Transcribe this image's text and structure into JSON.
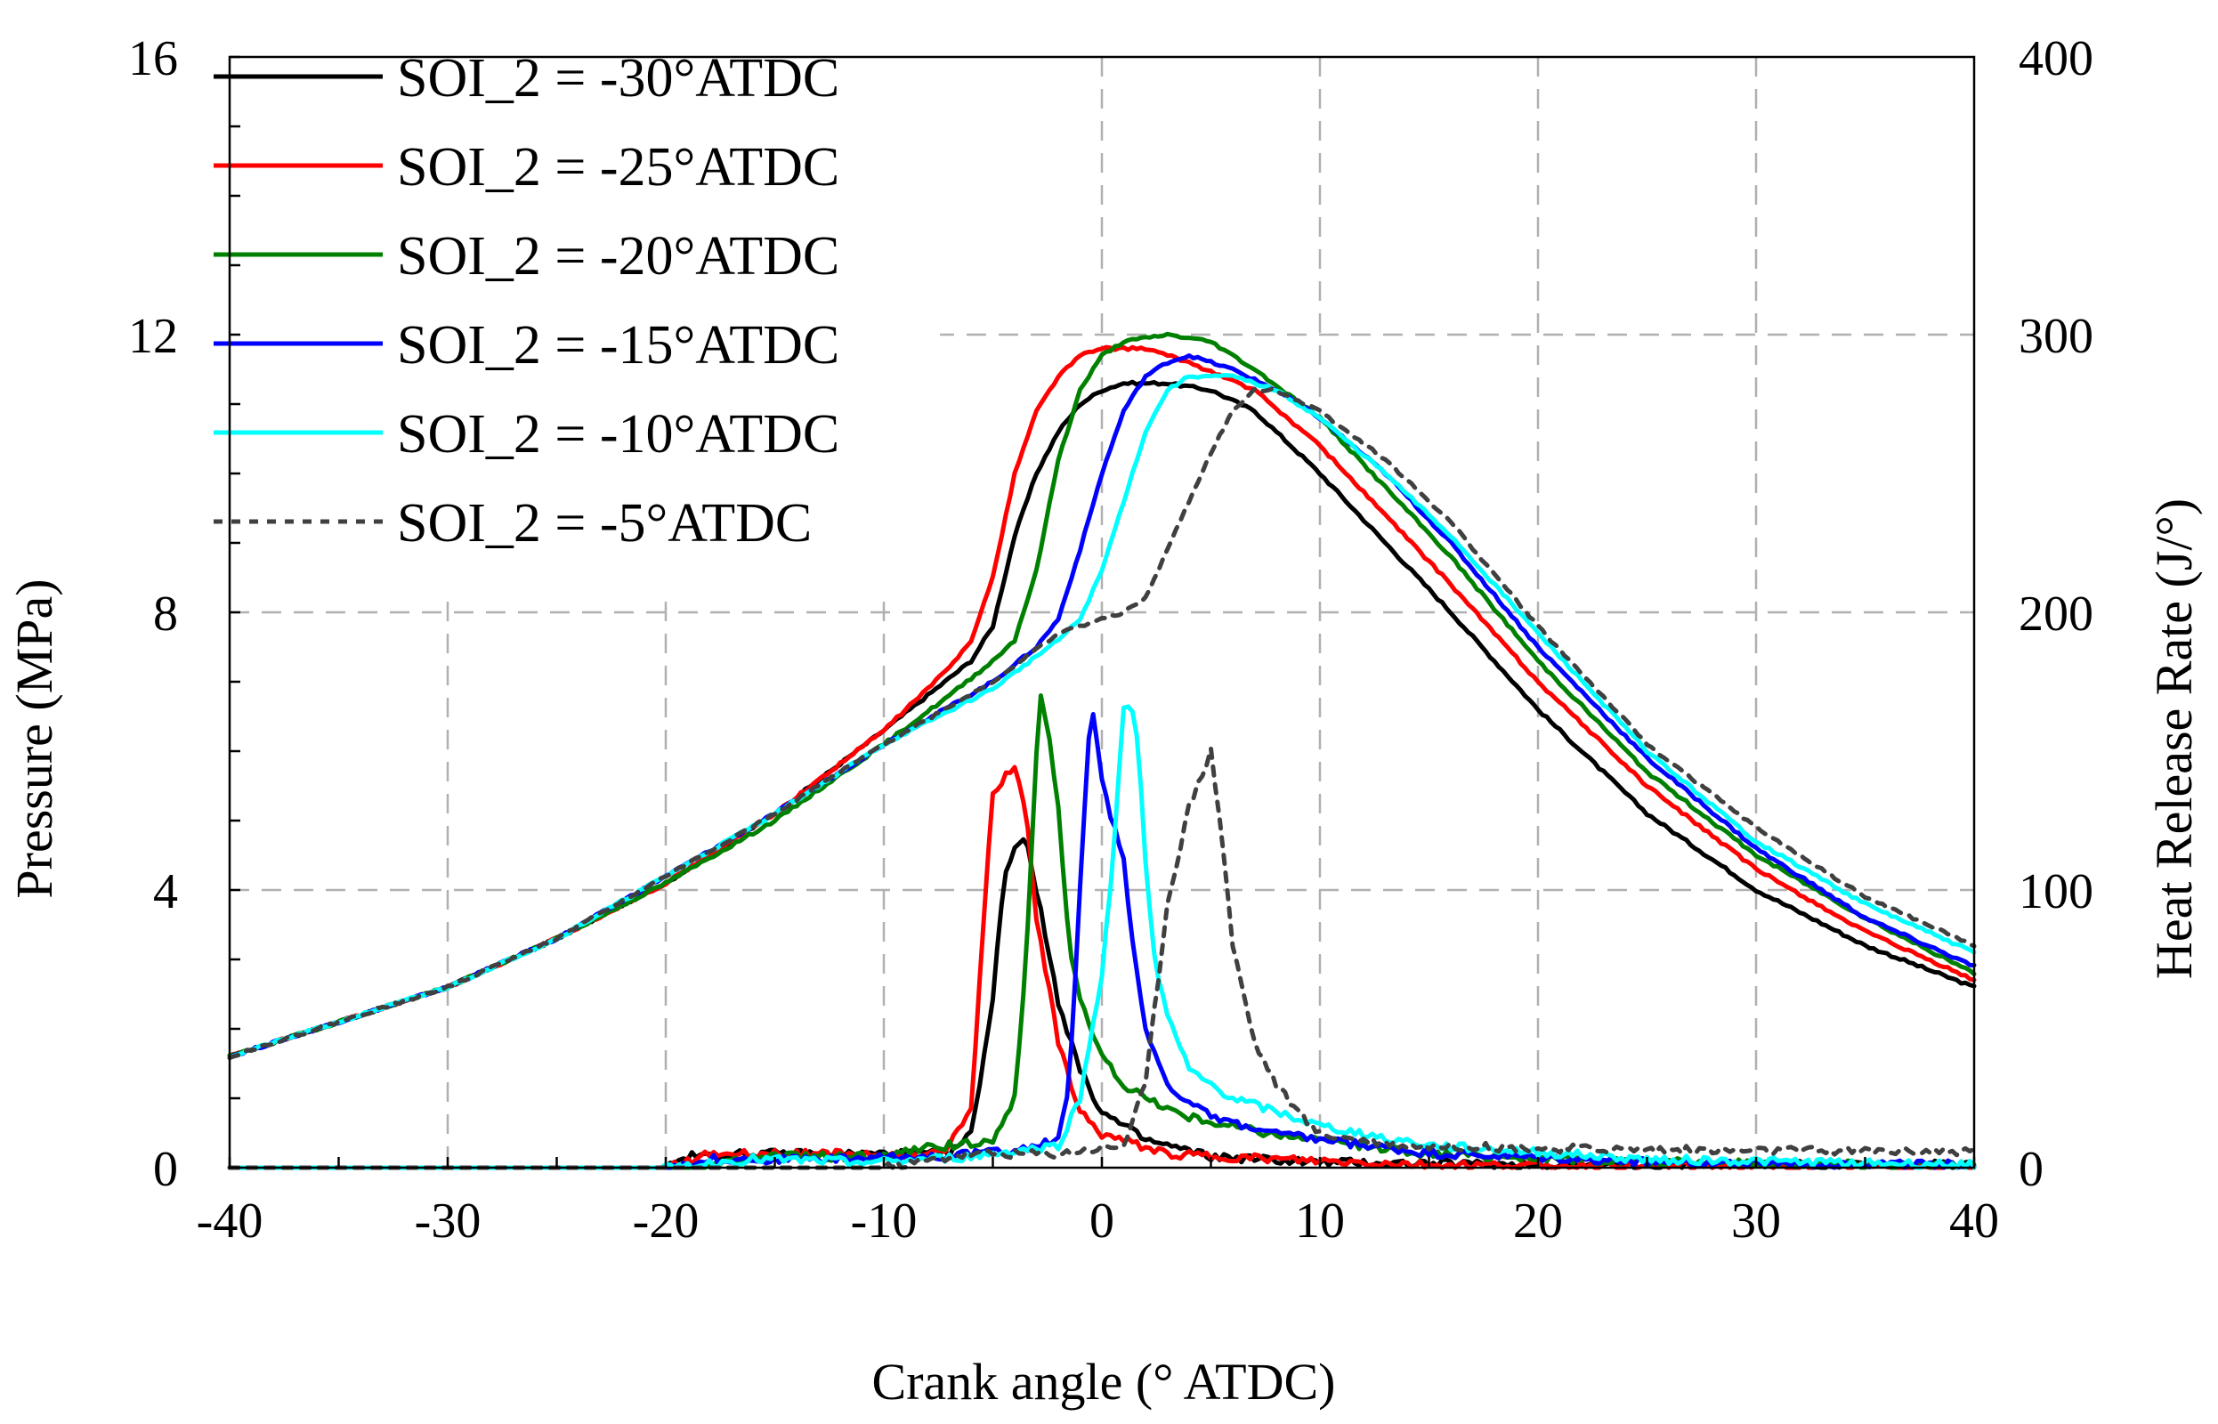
{
  "chart_data": {
    "type": "line",
    "xlabel": "Crank angle  (° ATDC)",
    "ylabel_left": "Pressure (MPa)",
    "ylabel_right": "Heat Release Rate (J/°)",
    "xlim": [
      -40,
      40
    ],
    "ylim_left": [
      0,
      16
    ],
    "ylim_right": [
      0,
      400
    ],
    "x_ticks": [
      "-40",
      "-30",
      "-20",
      "-10",
      "0",
      "10",
      "20",
      "30",
      "40"
    ],
    "y_left_ticks": [
      "0",
      "4",
      "8",
      "12",
      "16"
    ],
    "y_right_ticks": [
      "0",
      "100",
      "200",
      "300",
      "400"
    ],
    "grid": true,
    "legend_position": "top-left",
    "series": [
      {
        "name": "SOI_2 = -30°ATDC",
        "color": "#000000",
        "dash": "solid",
        "pressure": [
          [
            -40,
            1.6
          ],
          [
            -30,
            2.6
          ],
          [
            -25,
            3.3
          ],
          [
            -20,
            4.1
          ],
          [
            -15,
            5.1
          ],
          [
            -10,
            6.3
          ],
          [
            -6,
            7.3
          ],
          [
            -5,
            7.8
          ],
          [
            -4,
            9.1
          ],
          [
            -3,
            10.0
          ],
          [
            -2,
            10.6
          ],
          [
            -1,
            11.0
          ],
          [
            0,
            11.2
          ],
          [
            1,
            11.3
          ],
          [
            3,
            11.3
          ],
          [
            5,
            11.2
          ],
          [
            7,
            10.9
          ],
          [
            10,
            10.0
          ],
          [
            13,
            9.0
          ],
          [
            16,
            8.0
          ],
          [
            20,
            6.6
          ],
          [
            25,
            5.1
          ],
          [
            30,
            4.0
          ],
          [
            35,
            3.2
          ],
          [
            40,
            2.6
          ]
        ],
        "hrr": [
          [
            -40,
            0
          ],
          [
            -20,
            0
          ],
          [
            -19,
            4
          ],
          [
            -16,
            5
          ],
          [
            -10,
            5
          ],
          [
            -7,
            5
          ],
          [
            -6,
            12
          ],
          [
            -5,
            60
          ],
          [
            -4.5,
            105
          ],
          [
            -4,
            115
          ],
          [
            -3.5,
            120
          ],
          [
            -3,
            100
          ],
          [
            -2,
            60
          ],
          [
            -1,
            35
          ],
          [
            0,
            20
          ],
          [
            2,
            10
          ],
          [
            5,
            4
          ],
          [
            10,
            2
          ],
          [
            20,
            1
          ],
          [
            40,
            1
          ]
        ]
      },
      {
        "name": "SOI_2 = -25°ATDC",
        "color": "#ff0000",
        "dash": "solid",
        "pressure": [
          [
            -40,
            1.6
          ],
          [
            -30,
            2.6
          ],
          [
            -25,
            3.3
          ],
          [
            -20,
            4.1
          ],
          [
            -15,
            5.1
          ],
          [
            -10,
            6.3
          ],
          [
            -7,
            7.2
          ],
          [
            -6,
            7.6
          ],
          [
            -5,
            8.5
          ],
          [
            -4,
            10.0
          ],
          [
            -3,
            10.9
          ],
          [
            -2,
            11.4
          ],
          [
            -1,
            11.7
          ],
          [
            0,
            11.8
          ],
          [
            2,
            11.8
          ],
          [
            4,
            11.6
          ],
          [
            7,
            11.2
          ],
          [
            10,
            10.4
          ],
          [
            13,
            9.4
          ],
          [
            16,
            8.4
          ],
          [
            20,
            7.0
          ],
          [
            25,
            5.5
          ],
          [
            30,
            4.3
          ],
          [
            35,
            3.4
          ],
          [
            40,
            2.7
          ]
        ],
        "hrr": [
          [
            -40,
            0
          ],
          [
            -20,
            0
          ],
          [
            -18,
            5
          ],
          [
            -12,
            5
          ],
          [
            -8,
            4
          ],
          [
            -7,
            8
          ],
          [
            -6,
            20
          ],
          [
            -5.5,
            80
          ],
          [
            -5,
            135
          ],
          [
            -4.5,
            140
          ],
          [
            -4,
            145
          ],
          [
            -3.5,
            130
          ],
          [
            -3,
            90
          ],
          [
            -2,
            45
          ],
          [
            -1,
            20
          ],
          [
            0,
            12
          ],
          [
            3,
            5
          ],
          [
            8,
            3
          ],
          [
            15,
            1
          ],
          [
            40,
            0
          ]
        ]
      },
      {
        "name": "SOI_2 = -20°ATDC",
        "color": "#008000",
        "dash": "solid",
        "pressure": [
          [
            -40,
            1.6
          ],
          [
            -30,
            2.6
          ],
          [
            -25,
            3.3
          ],
          [
            -20,
            4.1
          ],
          [
            -15,
            5.0
          ],
          [
            -10,
            6.1
          ],
          [
            -7,
            6.8
          ],
          [
            -5,
            7.3
          ],
          [
            -4,
            7.6
          ],
          [
            -3,
            8.6
          ],
          [
            -2,
            10.2
          ],
          [
            -1,
            11.2
          ],
          [
            0,
            11.7
          ],
          [
            1,
            11.9
          ],
          [
            3,
            12.0
          ],
          [
            5,
            11.9
          ],
          [
            7,
            11.5
          ],
          [
            10,
            10.8
          ],
          [
            13,
            9.8
          ],
          [
            16,
            8.8
          ],
          [
            20,
            7.3
          ],
          [
            25,
            5.7
          ],
          [
            30,
            4.5
          ],
          [
            35,
            3.6
          ],
          [
            40,
            2.8
          ]
        ],
        "hrr": [
          [
            -40,
            0
          ],
          [
            -18,
            0
          ],
          [
            -16,
            4
          ],
          [
            -10,
            4
          ],
          [
            -8,
            7
          ],
          [
            -6,
            9
          ],
          [
            -5,
            10
          ],
          [
            -4,
            25
          ],
          [
            -3.5,
            70
          ],
          [
            -3,
            150
          ],
          [
            -2.8,
            170
          ],
          [
            -2.5,
            160
          ],
          [
            -2,
            130
          ],
          [
            -1.5,
            80
          ],
          [
            -1,
            60
          ],
          [
            0,
            40
          ],
          [
            1,
            30
          ],
          [
            2,
            25
          ],
          [
            4,
            18
          ],
          [
            8,
            12
          ],
          [
            15,
            5
          ],
          [
            25,
            2
          ],
          [
            40,
            1
          ]
        ]
      },
      {
        "name": "SOI_2 = -15°ATDC",
        "color": "#0000ff",
        "dash": "solid",
        "pressure": [
          [
            -40,
            1.6
          ],
          [
            -30,
            2.6
          ],
          [
            -25,
            3.3
          ],
          [
            -20,
            4.2
          ],
          [
            -15,
            5.1
          ],
          [
            -10,
            6.1
          ],
          [
            -5,
            7.0
          ],
          [
            -3,
            7.5
          ],
          [
            -2,
            7.9
          ],
          [
            -1,
            8.9
          ],
          [
            0,
            10.0
          ],
          [
            1,
            10.9
          ],
          [
            2,
            11.4
          ],
          [
            3,
            11.6
          ],
          [
            4,
            11.7
          ],
          [
            6,
            11.5
          ],
          [
            8,
            11.2
          ],
          [
            10,
            10.8
          ],
          [
            13,
            10.0
          ],
          [
            16,
            9.0
          ],
          [
            20,
            7.5
          ],
          [
            25,
            5.9
          ],
          [
            30,
            4.6
          ],
          [
            35,
            3.6
          ],
          [
            40,
            2.9
          ]
        ],
        "hrr": [
          [
            -40,
            0
          ],
          [
            -20,
            0
          ],
          [
            -18,
            3
          ],
          [
            -12,
            3
          ],
          [
            -8,
            4
          ],
          [
            -4,
            6
          ],
          [
            -2,
            10
          ],
          [
            -1.5,
            30
          ],
          [
            -1,
            100
          ],
          [
            -0.6,
            155
          ],
          [
            -0.4,
            162
          ],
          [
            0,
            140
          ],
          [
            0.3,
            130
          ],
          [
            1,
            110
          ],
          [
            1.6,
            70
          ],
          [
            2,
            50
          ],
          [
            3,
            30
          ],
          [
            5,
            18
          ],
          [
            8,
            12
          ],
          [
            15,
            5
          ],
          [
            25,
            2
          ],
          [
            40,
            1
          ]
        ]
      },
      {
        "name": "SOI_2 = -10°ATDC",
        "color": "#00ffff",
        "dash": "solid",
        "pressure": [
          [
            -40,
            1.6
          ],
          [
            -30,
            2.6
          ],
          [
            -25,
            3.3
          ],
          [
            -20,
            4.2
          ],
          [
            -15,
            5.1
          ],
          [
            -10,
            6.1
          ],
          [
            -5,
            6.9
          ],
          [
            -2,
            7.6
          ],
          [
            -1,
            7.9
          ],
          [
            0,
            8.6
          ],
          [
            1,
            9.6
          ],
          [
            2,
            10.6
          ],
          [
            3,
            11.2
          ],
          [
            4,
            11.4
          ],
          [
            6,
            11.4
          ],
          [
            8,
            11.2
          ],
          [
            10,
            10.8
          ],
          [
            13,
            10.0
          ],
          [
            16,
            9.1
          ],
          [
            20,
            7.7
          ],
          [
            25,
            6.0
          ],
          [
            30,
            4.7
          ],
          [
            35,
            3.8
          ],
          [
            40,
            3.1
          ]
        ],
        "hrr": [
          [
            -40,
            0
          ],
          [
            -20,
            0
          ],
          [
            -16,
            3
          ],
          [
            -10,
            2
          ],
          [
            -6,
            4
          ],
          [
            -2,
            8
          ],
          [
            -1,
            25
          ],
          [
            0,
            70
          ],
          [
            0.5,
            110
          ],
          [
            1,
            165
          ],
          [
            1.3,
            168
          ],
          [
            1.7,
            150
          ],
          [
            2,
            110
          ],
          [
            2.5,
            70
          ],
          [
            3,
            55
          ],
          [
            4,
            35
          ],
          [
            6,
            25
          ],
          [
            10,
            15
          ],
          [
            15,
            8
          ],
          [
            25,
            3
          ],
          [
            40,
            1
          ]
        ]
      },
      {
        "name": "SOI_2 = -5°ATDC",
        "color": "#404040",
        "dash": "dotted",
        "pressure": [
          [
            -40,
            1.6
          ],
          [
            -30,
            2.6
          ],
          [
            -25,
            3.3
          ],
          [
            -20,
            4.2
          ],
          [
            -15,
            5.1
          ],
          [
            -10,
            6.1
          ],
          [
            -5,
            7.0
          ],
          [
            -2,
            7.7
          ],
          [
            0,
            7.9
          ],
          [
            1,
            8.0
          ],
          [
            2,
            8.2
          ],
          [
            3,
            8.9
          ],
          [
            4,
            9.6
          ],
          [
            5,
            10.3
          ],
          [
            6,
            10.9
          ],
          [
            7,
            11.2
          ],
          [
            8,
            11.2
          ],
          [
            10,
            10.9
          ],
          [
            13,
            10.2
          ],
          [
            16,
            9.3
          ],
          [
            20,
            7.8
          ],
          [
            25,
            6.1
          ],
          [
            30,
            4.9
          ],
          [
            35,
            3.9
          ],
          [
            40,
            3.2
          ]
        ],
        "hrr": [
          [
            -40,
            0
          ],
          [
            -10,
            0
          ],
          [
            -6,
            5
          ],
          [
            -2,
            5
          ],
          [
            1,
            8
          ],
          [
            2,
            30
          ],
          [
            3,
            95
          ],
          [
            4,
            130
          ],
          [
            4.5,
            140
          ],
          [
            5,
            150
          ],
          [
            5.5,
            120
          ],
          [
            6,
            80
          ],
          [
            7,
            45
          ],
          [
            8,
            30
          ],
          [
            9,
            20
          ],
          [
            10,
            12
          ],
          [
            14,
            8
          ],
          [
            20,
            7
          ],
          [
            30,
            6
          ],
          [
            40,
            6
          ]
        ]
      }
    ]
  }
}
